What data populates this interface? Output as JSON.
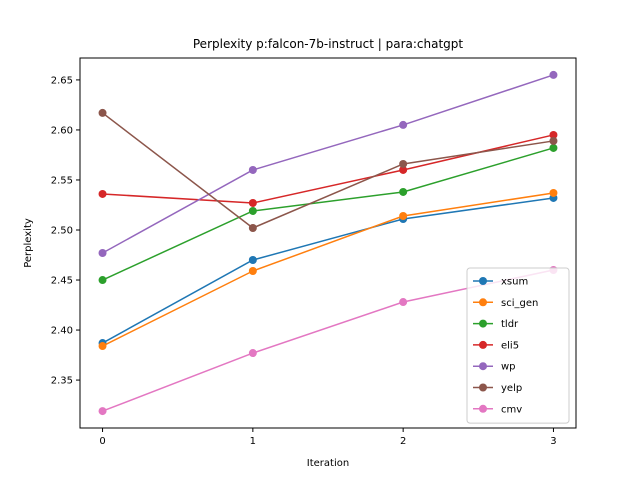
{
  "chart_data": {
    "type": "line",
    "title": "Perplexity p:falcon-7b-instruct | para:chatgpt",
    "xlabel": "Iteration",
    "ylabel": "Perplexity",
    "x": [
      0,
      1,
      2,
      3
    ],
    "x_ticks": [
      "0",
      "1",
      "2",
      "3"
    ],
    "y_ticks": [
      "2.35",
      "2.40",
      "2.45",
      "2.50",
      "2.55",
      "2.60",
      "2.65"
    ],
    "xlim": [
      -0.15,
      3.15
    ],
    "ylim": [
      2.3021,
      2.6719
    ],
    "grid": false,
    "legend_position": "lower-right",
    "series": [
      {
        "name": "xsum",
        "color": "#1f77b4",
        "values": [
          2.387,
          2.47,
          2.511,
          2.532
        ]
      },
      {
        "name": "sci_gen",
        "color": "#ff7f0e",
        "values": [
          2.384,
          2.459,
          2.514,
          2.537
        ]
      },
      {
        "name": "tldr",
        "color": "#2ca02c",
        "values": [
          2.45,
          2.519,
          2.538,
          2.582
        ]
      },
      {
        "name": "eli5",
        "color": "#d62728",
        "values": [
          2.536,
          2.527,
          2.56,
          2.595
        ]
      },
      {
        "name": "wp",
        "color": "#9467bd",
        "values": [
          2.477,
          2.56,
          2.605,
          2.655
        ]
      },
      {
        "name": "yelp",
        "color": "#8c564b",
        "values": [
          2.617,
          2.502,
          2.566,
          2.589
        ]
      },
      {
        "name": "cmv",
        "color": "#e377c2",
        "values": [
          2.319,
          2.377,
          2.428,
          2.46
        ]
      }
    ]
  }
}
